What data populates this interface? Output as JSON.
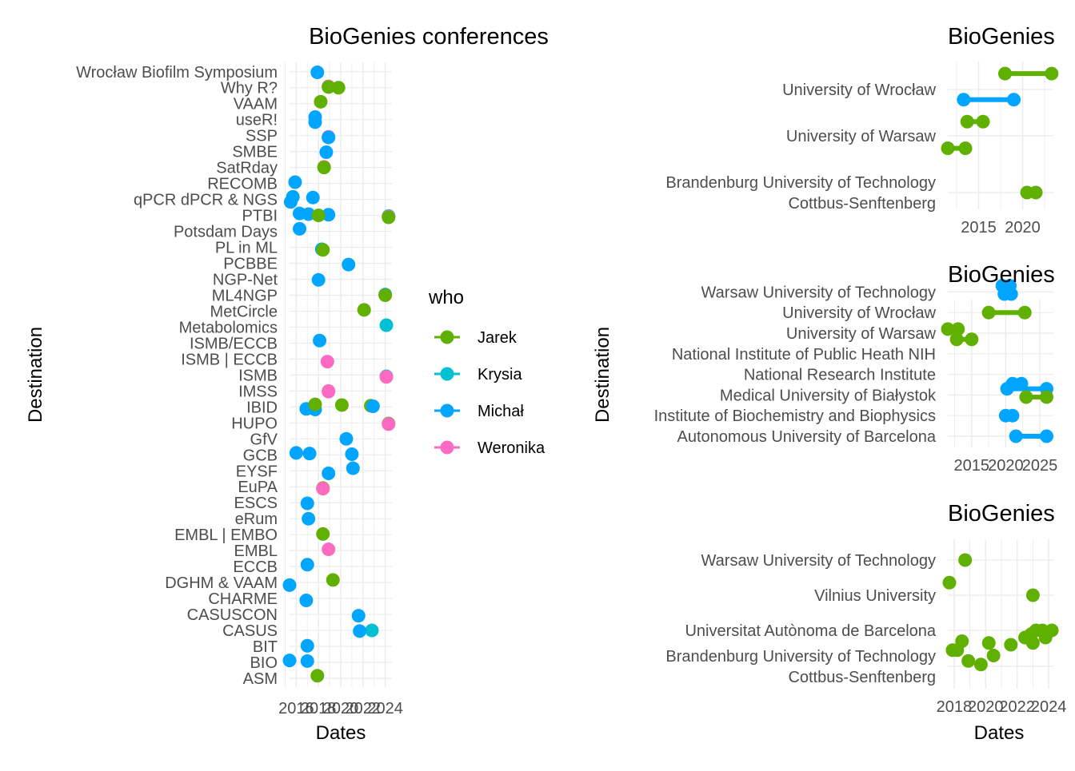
{
  "colors": {
    "Jarek": "#5fb000",
    "Krysia": "#00c1d4",
    "Michał": "#00a5ff",
    "Weronika": "#fc6ac1",
    "grid": "#ebebeb",
    "text": "#4d4d4d",
    "title": "#000000"
  },
  "legend": {
    "title": "who",
    "items": [
      "Jarek",
      "Krysia",
      "Michał",
      "Weronika"
    ]
  },
  "chart_data": [
    {
      "type": "scatter",
      "title": "BioGenies conferences",
      "xlabel": "Dates",
      "ylabel": "Destination",
      "xlim": [
        2015.4,
        2024.6
      ],
      "xticks": [
        2016,
        2018,
        2020,
        2022,
        2024
      ],
      "xtick_labels": [
        "2016",
        "2018",
        "2020",
        "2022",
        "2024"
      ],
      "categories": [
        "ASM",
        "BIO",
        "BIT",
        "CASUS",
        "CASUSCON",
        "CHARME",
        "DGHM & VAAM",
        "ECCB",
        "EMBL",
        "EMBL | EMBO",
        "eRum",
        "ESCS",
        "EuPA",
        "EYSF",
        "GCB",
        "GfV",
        "HUPO",
        "IBID",
        "IMSS",
        "ISMB",
        "ISMB | ECCB",
        "ISMB/ECCB",
        "Metabolomics",
        "MetCircle",
        "ML4NGP",
        "NGP-Net",
        "PCBBE",
        "PL in ML",
        "Potsdam Days",
        "PTBI",
        "qPCR dPCR & NGS",
        "RECOMB",
        "SatRday",
        "SMBE",
        "SSP",
        "useR!",
        "VAAM",
        "Why R?",
        "Wrocław Biofilm Symposium"
      ],
      "points": [
        {
          "who": "Jarek",
          "y": "ASM",
          "x": 2017.9
        },
        {
          "who": "Michał",
          "y": "BIO",
          "x": 2015.4
        },
        {
          "who": "Michał",
          "y": "BIO",
          "x": 2017.0
        },
        {
          "who": "Michał",
          "y": "BIT",
          "x": 2017.0
        },
        {
          "who": "Krysia",
          "y": "CASUS",
          "x": 2022.8
        },
        {
          "who": "Michał",
          "y": "CASUS",
          "x": 2021.7
        },
        {
          "who": "Michał",
          "y": "CASUSCON",
          "x": 2021.6
        },
        {
          "who": "Michał",
          "y": "CHARME",
          "x": 2016.9
        },
        {
          "who": "Michał",
          "y": "DGHM & VAAM",
          "x": 2015.4
        },
        {
          "who": "Jarek",
          "y": "DGHM & VAAM",
          "x": 2019.3
        },
        {
          "who": "Michał",
          "y": "ECCB",
          "x": 2017.0
        },
        {
          "who": "Weronika",
          "y": "EMBL",
          "x": 2018.9
        },
        {
          "who": "Jarek",
          "y": "EMBL | EMBO",
          "x": 2018.4
        },
        {
          "who": "Michał",
          "y": "eRum",
          "x": 2017.1
        },
        {
          "who": "Michał",
          "y": "ESCS",
          "x": 2017.0
        },
        {
          "who": "Jarek",
          "y": "EuPA",
          "x": 2018.4
        },
        {
          "who": "Weronika",
          "y": "EuPA",
          "x": 2018.4
        },
        {
          "who": "Michał",
          "y": "EYSF",
          "x": 2018.9
        },
        {
          "who": "Michał",
          "y": "EYSF",
          "x": 2021.1
        },
        {
          "who": "Michał",
          "y": "GCB",
          "x": 2016.0
        },
        {
          "who": "Michał",
          "y": "GCB",
          "x": 2017.2
        },
        {
          "who": "Michał",
          "y": "GCB",
          "x": 2021.0
        },
        {
          "who": "Michał",
          "y": "GfV",
          "x": 2020.5
        },
        {
          "who": "Jarek",
          "y": "HUPO",
          "x": 2024.3
        },
        {
          "who": "Weronika",
          "y": "HUPO",
          "x": 2024.3
        },
        {
          "who": "Michał",
          "y": "IBID",
          "x": 2016.9
        },
        {
          "who": "Michał",
          "y": "IBID",
          "x": 2017.7
        },
        {
          "who": "Jarek",
          "y": "IBID",
          "x": 2017.7
        },
        {
          "who": "Jarek",
          "y": "IBID",
          "x": 2020.1
        },
        {
          "who": "Jarek",
          "y": "IBID",
          "x": 2022.7
        },
        {
          "who": "Michał",
          "y": "IBID",
          "x": 2022.9
        },
        {
          "who": "Weronika",
          "y": "IMSS",
          "x": 2018.9
        },
        {
          "who": "Weronika",
          "y": "IMSS",
          "x": 2018.9
        },
        {
          "who": "Krysia",
          "y": "ISMB",
          "x": 2024.1
        },
        {
          "who": "Weronika",
          "y": "ISMB",
          "x": 2024.1
        },
        {
          "who": "Weronika",
          "y": "ISMB | ECCB",
          "x": 2018.8
        },
        {
          "who": "Michał",
          "y": "ISMB/ECCB",
          "x": 2018.1
        },
        {
          "who": "Krysia",
          "y": "Metabolomics",
          "x": 2024.1
        },
        {
          "who": "Jarek",
          "y": "MetCircle",
          "x": 2022.1
        },
        {
          "who": "Michał",
          "y": "ML4NGP",
          "x": 2024.0
        },
        {
          "who": "Jarek",
          "y": "ML4NGP",
          "x": 2024.0
        },
        {
          "who": "Michał",
          "y": "NGP-Net",
          "x": 2018.0
        },
        {
          "who": "Michał",
          "y": "PCBBE",
          "x": 2020.7
        },
        {
          "who": "Michał",
          "y": "PL in ML",
          "x": 2018.3
        },
        {
          "who": "Jarek",
          "y": "PL in ML",
          "x": 2018.4
        },
        {
          "who": "Michał",
          "y": "Potsdam Days",
          "x": 2016.3
        },
        {
          "who": "Michał",
          "y": "PTBI",
          "x": 2016.3
        },
        {
          "who": "Michał",
          "y": "PTBI",
          "x": 2017.1
        },
        {
          "who": "Michał",
          "y": "PTBI",
          "x": 2018.9
        },
        {
          "who": "Jarek",
          "y": "PTBI",
          "x": 2018.0
        },
        {
          "who": "Krysia",
          "y": "PTBI",
          "x": 2024.3
        },
        {
          "who": "Weronika",
          "y": "PTBI",
          "x": 2024.3
        },
        {
          "who": "Jarek",
          "y": "PTBI",
          "x": 2024.3
        },
        {
          "who": "Michał",
          "y": "qPCR dPCR & NGS",
          "x": 2015.5
        },
        {
          "who": "Michał",
          "y": "qPCR dPCR & NGS",
          "x": 2015.7
        },
        {
          "who": "Michał",
          "y": "qPCR dPCR & NGS",
          "x": 2017.5
        },
        {
          "who": "Michał",
          "y": "RECOMB",
          "x": 2015.9
        },
        {
          "who": "Weronika",
          "y": "SatRday",
          "x": 2018.5
        },
        {
          "who": "Jarek",
          "y": "SatRday",
          "x": 2018.5
        },
        {
          "who": "Michał",
          "y": "SMBE",
          "x": 2018.7
        },
        {
          "who": "Weronika",
          "y": "SSP",
          "x": 2018.9
        },
        {
          "who": "Michał",
          "y": "SSP",
          "x": 2018.9
        },
        {
          "who": "Michał",
          "y": "useR!",
          "x": 2017.7
        },
        {
          "who": "Michał",
          "y": "useR!",
          "x": 2017.7
        },
        {
          "who": "Jarek",
          "y": "VAAM",
          "x": 2018.2
        },
        {
          "who": "Weronika",
          "y": "Why R?",
          "x": 2018.9
        },
        {
          "who": "Jarek",
          "y": "Why R?",
          "x": 2018.9
        },
        {
          "who": "Jarek",
          "y": "Why R?",
          "x": 2019.8
        },
        {
          "who": "Michał",
          "y": "Wrocław Biofilm Symposium",
          "x": 2017.9
        }
      ]
    },
    {
      "type": "dumbbell",
      "title": "BioGenies",
      "xlabel": "",
      "ylabel": "",
      "xlim": [
        2011.5,
        2023.5
      ],
      "xticks": [
        2015,
        2020
      ],
      "xtick_labels": [
        "2015",
        "2020"
      ],
      "categories": [
        {
          "label_lines": [
            "Brandenburg University of Technology",
            "Cottbus-Senftenberg"
          ]
        },
        {
          "label_lines": [
            "University of Warsaw"
          ]
        },
        {
          "label_lines": [
            "University of Wrocław"
          ]
        }
      ],
      "segments": [
        {
          "who": "Jarek",
          "cat": 0,
          "offset": 0,
          "from": 2020.5,
          "to": 2021.5
        },
        {
          "who": "Jarek",
          "cat": 1,
          "offset": -0.25,
          "from": 2013.7,
          "to": 2015.5
        },
        {
          "who": "Jarek",
          "cat": 1,
          "offset": 0.22,
          "from": 2011.5,
          "to": 2013.5
        },
        {
          "who": "Jarek",
          "cat": 2,
          "offset": -0.28,
          "from": 2018.0,
          "to": 2023.3
        },
        {
          "who": "Michał",
          "cat": 2,
          "offset": 0.18,
          "from": 2013.3,
          "to": 2019.0
        }
      ]
    },
    {
      "type": "dumbbell",
      "title": "BioGenies",
      "xlabel": "",
      "ylabel": "Destination",
      "xlim": [
        2011.5,
        2027.0
      ],
      "xticks": [
        2015,
        2020,
        2025
      ],
      "xtick_labels": [
        "2015",
        "2020",
        "2025"
      ],
      "categories": [
        {
          "label_lines": [
            "Autonomous University of Barcelona"
          ]
        },
        {
          "label_lines": [
            "Institute of Biochemistry and Biophysics"
          ]
        },
        {
          "label_lines": [
            "Medical University of Białystok"
          ]
        },
        {
          "label_lines": [
            "National Research Institute"
          ]
        },
        {
          "label_lines": [
            "National Institute of Public Heath NIH"
          ]
        },
        {
          "label_lines": [
            "University of Warsaw"
          ]
        },
        {
          "label_lines": [
            "University of Wrocław"
          ]
        },
        {
          "label_lines": [
            "Warsaw University of Technology"
          ]
        }
      ],
      "segments": [
        {
          "who": "Michał",
          "cat": 0,
          "offset": 0,
          "from": 2021.5,
          "to": 2026.0
        },
        {
          "who": "Michał",
          "cat": 1,
          "offset": 0,
          "from": 2020.0,
          "to": 2021.0
        },
        {
          "who": "Michał",
          "cat": 2,
          "offset": -0.3,
          "from": 2020.2,
          "to": 2026.0
        },
        {
          "who": "Jarek",
          "cat": 2,
          "offset": 0.1,
          "from": 2023.0,
          "to": 2026.0
        },
        {
          "who": "Michał",
          "cat": 3,
          "offset": 0.45,
          "from": 2021.0,
          "to": 2022.3
        },
        {
          "who": "Jarek",
          "cat": 5,
          "offset": -0.2,
          "from": 2011.5,
          "to": 2013.0
        },
        {
          "who": "Jarek",
          "cat": 5,
          "offset": 0.3,
          "from": 2012.8,
          "to": 2015.0
        },
        {
          "who": "Jarek",
          "cat": 6,
          "offset": 0,
          "from": 2017.5,
          "to": 2022.8
        },
        {
          "who": "Michał",
          "cat": 7,
          "offset": -0.3,
          "from": 2019.5,
          "to": 2020.6
        },
        {
          "who": "Michał",
          "cat": 7,
          "offset": 0.1,
          "from": 2019.8,
          "to": 2020.8
        }
      ]
    },
    {
      "type": "scatter",
      "title": "BioGenies",
      "xlabel": "Dates",
      "ylabel": "",
      "xlim": [
        2017.6,
        2024.3
      ],
      "xticks": [
        2018,
        2020,
        2022,
        2024
      ],
      "xtick_labels": [
        "2018",
        "2020",
        "2022",
        "2024"
      ],
      "categories": [
        {
          "label_lines": [
            "Brandenburg University of Technology",
            "Cottbus-Senftenberg"
          ]
        },
        {
          "label_lines": [
            "Universitat Autònoma de Barcelona"
          ]
        },
        {
          "label_lines": [
            "Vilnius University"
          ]
        },
        {
          "label_lines": [
            "Warsaw University of Technology"
          ]
        }
      ],
      "points": [
        {
          "who": "Jarek",
          "cat": 0,
          "offset": 0.45,
          "x": 2017.9
        },
        {
          "who": "Jarek",
          "cat": 0,
          "offset": 0.45,
          "x": 2018.2
        },
        {
          "who": "Jarek",
          "cat": 0,
          "offset": 0.15,
          "x": 2018.9
        },
        {
          "who": "Jarek",
          "cat": 0,
          "offset": 0.05,
          "x": 2019.7
        },
        {
          "who": "Jarek",
          "cat": 0,
          "offset": 0.3,
          "x": 2020.5
        },
        {
          "who": "Jarek",
          "cat": 0,
          "offset": 0.6,
          "x": 2021.6
        },
        {
          "who": "Jarek",
          "cat": 0,
          "offset": 0.8,
          "x": 2022.5
        },
        {
          "who": "Jarek",
          "cat": 0,
          "offset": 1.0,
          "x": 2023.2
        },
        {
          "who": "Jarek",
          "cat": 0,
          "offset": 0.8,
          "x": 2023.8
        },
        {
          "who": "Jarek",
          "cat": 0,
          "offset": 0.65,
          "x": 2020.2
        },
        {
          "who": "Jarek",
          "cat": 0,
          "offset": 0.9,
          "x": 2022.9
        },
        {
          "who": "Jarek",
          "cat": 1,
          "offset": 0,
          "x": 2023.6
        },
        {
          "who": "Jarek",
          "cat": 1,
          "offset": -0.35,
          "x": 2023.0
        },
        {
          "who": "Jarek",
          "cat": 1,
          "offset": 0.0,
          "x": 2024.2
        },
        {
          "who": "Jarek",
          "cat": 1,
          "offset": -0.3,
          "x": 2018.5
        },
        {
          "who": "Jarek",
          "cat": 2,
          "offset": 0,
          "x": 2023.0
        },
        {
          "who": "Jarek",
          "cat": 2,
          "offset": 0.35,
          "x": 2017.7
        },
        {
          "who": "Jarek",
          "cat": 3,
          "offset": 0,
          "x": 2018.7
        }
      ]
    }
  ]
}
